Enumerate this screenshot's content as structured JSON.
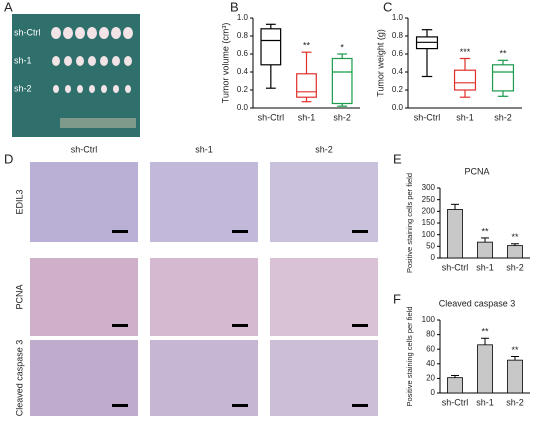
{
  "panel_labels": [
    "A",
    "B",
    "C",
    "D",
    "E",
    "F"
  ],
  "photo": {
    "rows": [
      "sh-Ctrl",
      "sh-1",
      "sh-2"
    ]
  },
  "histology": {
    "columns": [
      "sh-Ctrl",
      "sh-1",
      "sh-2"
    ],
    "rows": [
      "EDIL3",
      "PCNA",
      "Cleaved caspase 3"
    ]
  },
  "chart_data": [
    {
      "type": "box",
      "y_label": "Tumor volume (cm³)",
      "categories": [
        "sh-Ctrl",
        "sh-1",
        "sh-2"
      ],
      "colors": [
        "#000000",
        "#e0302a",
        "#1a9a4a"
      ],
      "min": [
        0.22,
        0.07,
        0.02
      ],
      "q1": [
        0.48,
        0.12,
        0.05
      ],
      "median": [
        0.75,
        0.18,
        0.4
      ],
      "q3": [
        0.88,
        0.38,
        0.55
      ],
      "max": [
        0.93,
        0.62,
        0.6
      ],
      "annotations": [
        {
          "x": "sh-1",
          "text": "**"
        },
        {
          "x": "sh-2",
          "text": "*"
        }
      ],
      "ylim": [
        0,
        1
      ],
      "yticks": [
        {
          "value": 0,
          "label": "0.0"
        },
        0.2,
        0.4,
        0.6,
        0.8,
        {
          "value": 1,
          "label": "1.0"
        }
      ]
    },
    {
      "type": "box",
      "y_label": "Tumor weight (g)",
      "categories": [
        "sh-Ctrl",
        "sh-1",
        "sh-2"
      ],
      "colors": [
        "#000000",
        "#e0302a",
        "#1a9a4a"
      ],
      "min": [
        0.35,
        0.12,
        0.13
      ],
      "q1": [
        0.66,
        0.2,
        0.19
      ],
      "median": [
        0.73,
        0.28,
        0.4
      ],
      "q3": [
        0.79,
        0.42,
        0.48
      ],
      "max": [
        0.87,
        0.55,
        0.53
      ],
      "annotations": [
        {
          "x": "sh-1",
          "text": "***"
        },
        {
          "x": "sh-2",
          "text": "**"
        }
      ],
      "ylim": [
        0,
        1
      ],
      "yticks": [
        {
          "value": 0,
          "label": "0.0"
        },
        0.2,
        0.4,
        0.6,
        0.8,
        {
          "value": 1,
          "label": "1.0"
        }
      ]
    },
    {
      "type": "bar",
      "title": "PCNA",
      "y_label": "Positive staining cells per field",
      "categories": [
        "sh-Ctrl",
        "sh-1",
        "sh-2"
      ],
      "values": [
        208,
        68,
        53
      ],
      "errors": [
        22,
        18,
        8
      ],
      "color": "#c8c8c8",
      "annotations": [
        {
          "x": "sh-1",
          "text": "**"
        },
        {
          "x": "sh-2",
          "text": "**"
        }
      ],
      "ylim": [
        0,
        300
      ],
      "yticks": [
        0,
        50,
        100,
        150,
        200,
        250,
        300
      ]
    },
    {
      "type": "bar",
      "title": "Cleaved caspase 3",
      "y_label": "Positive staining cells per field",
      "categories": [
        "sh-Ctrl",
        "sh-1",
        "sh-2"
      ],
      "values": [
        21,
        66,
        45
      ],
      "errors": [
        3,
        9,
        5
      ],
      "color": "#c8c8c8",
      "annotations": [
        {
          "x": "sh-1",
          "text": "**"
        },
        {
          "x": "sh-2",
          "text": "**"
        }
      ],
      "ylim": [
        0,
        100
      ],
      "yticks": [
        0,
        20,
        40,
        60,
        80,
        100
      ]
    }
  ]
}
